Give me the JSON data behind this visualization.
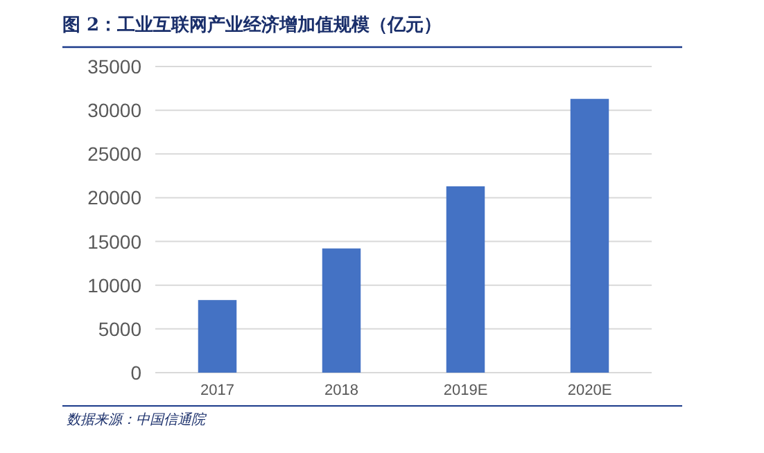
{
  "chart_data": {
    "type": "bar",
    "title": "图 2：工业互联网产业经济增加值规模（亿元）",
    "categories": [
      "2017",
      "2018",
      "2019E",
      "2020E"
    ],
    "values": [
      8300,
      14200,
      21300,
      31300
    ],
    "color": "#4472c4",
    "ylim": [
      0,
      35000
    ],
    "yticks": [
      0,
      5000,
      10000,
      15000,
      20000,
      25000,
      30000,
      35000
    ],
    "grid": "y",
    "annotations": [
      "数据来源：中国信通院"
    ]
  }
}
